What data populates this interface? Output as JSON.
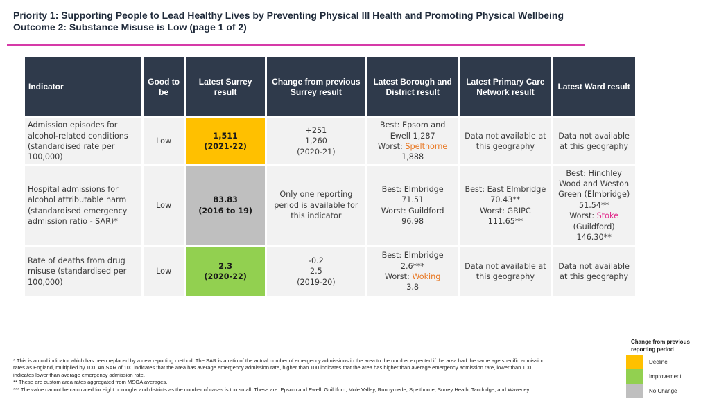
{
  "header": {
    "title_line1": "Priority 1: Supporting People to Lead Healthy Lives by Preventing Physical Ill Health and Promoting Physical Wellbeing",
    "title_line2": "Outcome 2: Substance Misuse is Low (page 1 of 2)"
  },
  "colors": {
    "accent_rule": "#d63aa8",
    "header_bg": "#2f3a4b",
    "decline": "#ffc000",
    "improvement": "#92d050",
    "no_change": "#bfbfbf",
    "orange_text": "#e87722",
    "pink_text": "#e0298a"
  },
  "table": {
    "headers": [
      "Indicator",
      "Good to be",
      "Latest Surrey result",
      "Change from previous Surrey result",
      "Latest Borough and District result",
      "Latest Primary Care Network result",
      "Latest Ward result"
    ],
    "rows": [
      {
        "indicator": "Admission episodes for alcohol-related conditions (standardised rate per 100,000)",
        "good_to_be": "Low",
        "surrey_value": "1,511",
        "surrey_period": "(2021-22)",
        "surrey_status": "Decline",
        "change_line1": "+251",
        "change_line2": "1,260",
        "change_line3": "(2020-21)",
        "borough_best": "Best: Epsom and Ewell 1,287",
        "borough_worst_label": "Worst: ",
        "borough_worst_name": "Spelthorne",
        "borough_worst_value": "1,888",
        "pcn": "Data not available at this geography",
        "ward": "Data not available at this geography"
      },
      {
        "indicator": "Hospital admissions for alcohol attributable harm (standardised emergency admission ratio - SAR)*",
        "good_to_be": "Low",
        "surrey_value": "83.83",
        "surrey_period": "(2016 to 19)",
        "surrey_status": "No Change",
        "change": "Only one reporting period is available for this indicator",
        "borough_best": "Best: Elmbridge 71.51",
        "borough_worst": "Worst: Guildford 96.98",
        "pcn_best": "Best: East Elmbridge 70.43**",
        "pcn_worst": "Worst: GRIPC 111.65**",
        "ward_best": "Best: Hinchley Wood and Weston Green (Elmbridge) 51.54**",
        "ward_worst_label": "Worst: ",
        "ward_worst_name": "Stoke",
        "ward_worst_value": "(Guildford) 146.30**"
      },
      {
        "indicator": "Rate of deaths from drug misuse (standardised per 100,000)",
        "good_to_be": "Low",
        "surrey_value": "2.3",
        "surrey_period": "(2020-22)",
        "surrey_status": "Improvement",
        "change_line1": "-0.2",
        "change_line2": "2.5",
        "change_line3": "(2019-20)",
        "borough_best": "Best: Elmbridge 2.6***",
        "borough_worst_label": "Worst: ",
        "borough_worst_name": "Woking",
        "borough_worst_value": "3.8",
        "pcn": "Data not available at this geography",
        "ward": "Data not available at this geography"
      }
    ]
  },
  "footnotes": [
    "* This is an old indicator which has been replaced by a new reporting method. The SAR is a ratio of the actual number of emergency admissions in the area to the number expected if the area had the same age specific admission",
    "rates as England, multiplied by 100. An SAR of 100 indicates that the area has average emergency admission rate, higher than 100 indicates that the area has higher than average emergency admission rate, lower than 100",
    "indicates lower than average emergency admission rate.",
    "** These are custom area rates aggregated from MSOA averages.",
    "*** The value cannot be calculated for eight boroughs and districts as the number of cases is too small. These are: Epsom and Ewell, Guildford, Mole Valley, Runnymede, Spelthorne, Surrey Heath, Tandridge, and Waverley"
  ],
  "legend": {
    "title": "Change from previous reporting period",
    "items": [
      {
        "label": "Decline",
        "color": "#ffc000"
      },
      {
        "label": "Improvement",
        "color": "#92d050"
      },
      {
        "label": "No Change",
        "color": "#bfbfbf"
      }
    ]
  }
}
